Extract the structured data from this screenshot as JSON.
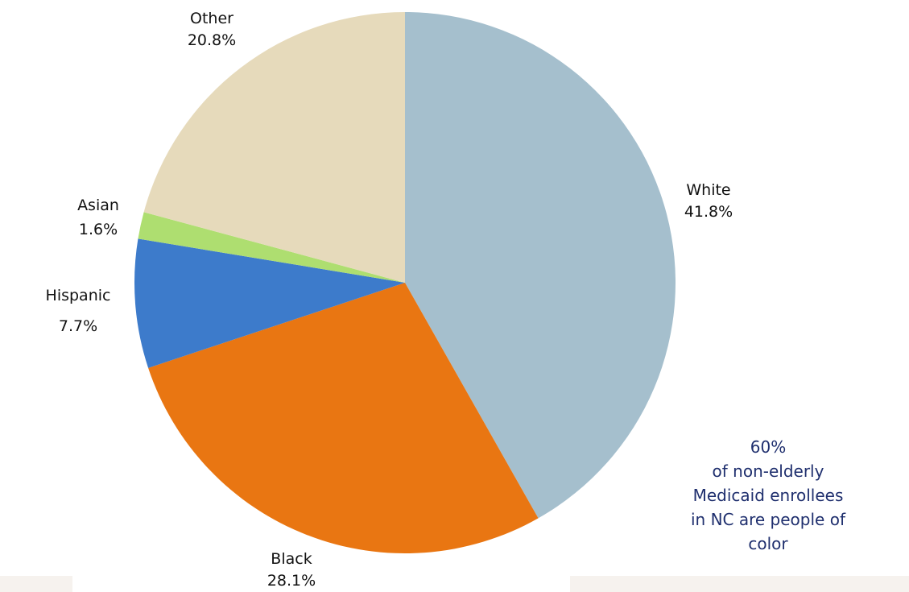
{
  "chart_data": {
    "type": "pie",
    "slices": [
      {
        "label": "White",
        "value_label": "41.8%",
        "value": 41.8,
        "color": "#a5bfcd"
      },
      {
        "label": "Black",
        "value_label": "28.1%",
        "value": 28.1,
        "color": "#e97612"
      },
      {
        "label": "Hispanic",
        "value_label": "7.7%",
        "value": 7.7,
        "color": "#3d7bcb"
      },
      {
        "label": "Asian",
        "value_label": "1.6%",
        "value": 1.6,
        "color": "#aede70"
      },
      {
        "label": "Other",
        "value_label": "20.8%",
        "value": 20.8,
        "color": "#e6dabb"
      }
    ],
    "start_angle": "12 o'clock",
    "direction": "clockwise",
    "legend": "none"
  },
  "callout": {
    "lines": [
      "60%",
      "of non-elderly",
      "Medicaid enrollees",
      "in NC are people of",
      "color"
    ]
  }
}
